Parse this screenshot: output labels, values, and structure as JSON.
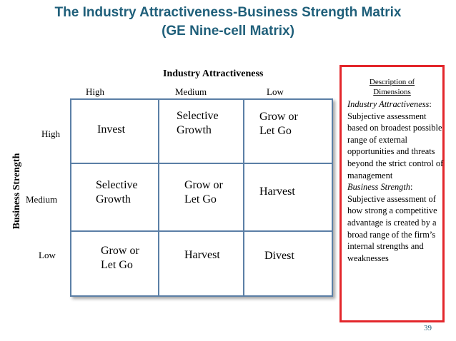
{
  "title": {
    "line1": "The Industry Attractiveness-Business Strength Matrix",
    "line2": "(GE Nine-cell Matrix)"
  },
  "axes": {
    "industry_attractiveness": "Industry Attractiveness",
    "business_strength": "Business Strength",
    "columns": [
      "High",
      "Medium",
      "Low"
    ],
    "rows": [
      "High",
      "Medium",
      "Low"
    ]
  },
  "cells": {
    "r1c1": [
      "Invest"
    ],
    "r1c2": [
      "Selective",
      "Growth"
    ],
    "r1c3": [
      "Grow or",
      "Let Go"
    ],
    "r2c1": [
      "Selective",
      "Growth"
    ],
    "r2c2": [
      "Grow or",
      "Let Go"
    ],
    "r2c3": [
      "Harvest"
    ],
    "r3c1": [
      "Grow or",
      "Let Go"
    ],
    "r3c2": [
      "Harvest"
    ],
    "r3c3": [
      "Divest"
    ]
  },
  "description": {
    "heading1": "Description of",
    "heading2": "Dimensions",
    "ia_term": "Industry Attractiveness",
    "ia_text": "Subjective assessment based on broadest possible range of external opportunities and threats beyond the strict control of management",
    "bs_term": "Business Strength",
    "bs_text": "Subjective assessment of how strong a competitive advantage is created by a broad range of the firm’s internal strengths and weaknesses"
  },
  "page_number": "39"
}
